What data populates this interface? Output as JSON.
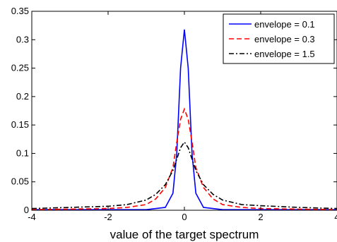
{
  "chart_data": {
    "type": "line",
    "title": "",
    "xlabel": "value of the target spectrum",
    "ylabel": "",
    "xlim": [
      -4,
      4
    ],
    "ylim": [
      0,
      0.35
    ],
    "xticks": [
      -4,
      -2,
      0,
      2,
      4
    ],
    "xtick_labels": [
      "-4",
      "-2",
      "0",
      "2",
      "4"
    ],
    "yticks": [
      0,
      0.05,
      0.1,
      0.15,
      0.2,
      0.25,
      0.3,
      0.35
    ],
    "ytick_labels": [
      "0",
      "0.05",
      "0.1",
      "0.15",
      "0.2",
      "0.25",
      "0.3",
      "0.35"
    ],
    "grid": false,
    "legend_position": "top-right",
    "series": [
      {
        "name": "envelope = 0.1",
        "color": "#0000ff",
        "dash": "solid",
        "x": [
          -4,
          -3,
          -2,
          -1.5,
          -1,
          -0.5,
          -0.3,
          -0.2,
          -0.1,
          0,
          0.1,
          0.2,
          0.3,
          0.5,
          1,
          1.5,
          2,
          3,
          4
        ],
        "y": [
          0.001,
          0.001,
          0.001,
          0.001,
          0.001,
          0.005,
          0.03,
          0.1,
          0.25,
          0.318,
          0.25,
          0.1,
          0.03,
          0.005,
          0.001,
          0.001,
          0.001,
          0.001,
          0.001
        ]
      },
      {
        "name": "envelope = 0.3",
        "color": "#ff0000",
        "dash": "dashed",
        "x": [
          -4,
          -3,
          -2,
          -1.5,
          -1,
          -0.75,
          -0.5,
          -0.3,
          -0.2,
          -0.1,
          0,
          0.1,
          0.2,
          0.3,
          0.5,
          0.75,
          1,
          1.5,
          2,
          3,
          4
        ],
        "y": [
          0.001,
          0.002,
          0.003,
          0.005,
          0.01,
          0.02,
          0.04,
          0.075,
          0.12,
          0.16,
          0.178,
          0.16,
          0.12,
          0.075,
          0.04,
          0.02,
          0.01,
          0.005,
          0.003,
          0.002,
          0.001
        ]
      },
      {
        "name": "envelope = 1.5",
        "color": "#000000",
        "dash": "dashdot",
        "x": [
          -4,
          -3,
          -2,
          -1.5,
          -1,
          -0.75,
          -0.5,
          -0.3,
          -0.2,
          -0.1,
          0,
          0.1,
          0.2,
          0.3,
          0.5,
          0.75,
          1,
          1.5,
          2,
          3,
          4
        ],
        "y": [
          0.003,
          0.005,
          0.007,
          0.01,
          0.018,
          0.028,
          0.045,
          0.07,
          0.09,
          0.11,
          0.12,
          0.11,
          0.09,
          0.07,
          0.045,
          0.028,
          0.018,
          0.01,
          0.008,
          0.005,
          0.003
        ]
      }
    ]
  }
}
